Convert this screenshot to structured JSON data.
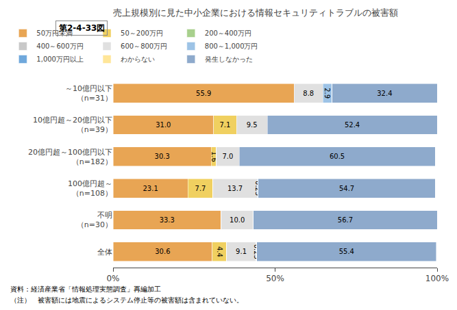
{
  "chart_data": {
    "type": "bar",
    "orientation": "horizontal",
    "stacked": true,
    "title": "売上規模別に見た中小企業における情報セキュリティトラブルの被害額",
    "annotations": [
      "第2-4-33図",
      "資料：経済産業省「情報処理実態調査」再編加工",
      "（注）　被害額には地震によるシステム停止等の被害額は含まれていない。"
    ],
    "categories": [
      "～10億円以下\n（n=31）",
      "10億円超～20億円以下\n（n=39）",
      "20億円超～100億円以下\n（n=182）",
      "100億円超～\n（n=108）",
      "不明\n（n=30）",
      "全体"
    ],
    "series": [
      {
        "name": "50万円未満",
        "color": "#E8A554",
        "values": [
          55.9,
          31.0,
          30.3,
          23.1,
          33.3,
          30.6
        ],
        "value_labels": [
          "55.9",
          "31.0",
          "30.3",
          "23.1",
          "33.3",
          "30.6"
        ]
      },
      {
        "name": "50～200万円",
        "color": "#F0D060",
        "values": [
          0.0,
          7.1,
          1.6,
          7.7,
          0.0,
          4.4
        ],
        "value_labels": [
          null,
          "7.1",
          "1.6",
          "7.7",
          null,
          "4.4"
        ]
      },
      {
        "name": "200～400万円",
        "color": "#A8D08D",
        "values": [
          0.0,
          0.0,
          0.0,
          0.0,
          0.0,
          0.0
        ],
        "value_labels": [
          null,
          null,
          null,
          null,
          null,
          null
        ]
      },
      {
        "name": "400～600万円",
        "color": "#C8C8C8",
        "values": [
          0.0,
          0.0,
          0.0,
          0.0,
          0.0,
          0.0
        ],
        "value_labels": [
          null,
          null,
          null,
          null,
          null,
          null
        ]
      },
      {
        "name": "600～800万円",
        "color": "#E0E0E0",
        "values": [
          8.8,
          9.5,
          7.0,
          13.7,
          10.0,
          9.1
        ],
        "value_labels": [
          "8.8",
          "9.5",
          "7.0",
          "13.7",
          "10.0",
          "9.1"
        ]
      },
      {
        "name": "800～1,000万円",
        "color": "#9DC3E6",
        "values": [
          2.9,
          0.0,
          0.0,
          0.25,
          0.0,
          0.25
        ],
        "value_labels": [
          "2.9",
          null,
          null,
          "0.25",
          null,
          "0.25"
        ]
      },
      {
        "name": "1,000万円以上",
        "color": "#6FA8DC",
        "values": [
          0.0,
          0.0,
          0.0,
          0.0,
          0.0,
          0.0
        ],
        "value_labels": [
          null,
          null,
          null,
          null,
          null,
          null
        ]
      },
      {
        "name": "わからない",
        "color": "#FFE699",
        "values": [
          0.0,
          0.0,
          0.0,
          0.0,
          0.0,
          0.0
        ],
        "value_labels": [
          null,
          null,
          null,
          null,
          null,
          null
        ]
      },
      {
        "name": "発生しなかった",
        "color": "#8EAACC",
        "values": [
          32.4,
          52.4,
          60.5,
          54.7,
          56.7,
          55.4
        ],
        "value_labels": [
          "32.4",
          "52.4",
          "60.5",
          "54.7",
          "56.7",
          "55.4"
        ]
      }
    ],
    "xlim": [
      0,
      100
    ],
    "xticks": [
      {
        "value": 0,
        "label": "0%"
      },
      {
        "value": 50,
        "label": "50%"
      },
      {
        "value": 100,
        "label": "100%"
      }
    ],
    "grid": false,
    "legend": "top",
    "data_labels": true
  }
}
